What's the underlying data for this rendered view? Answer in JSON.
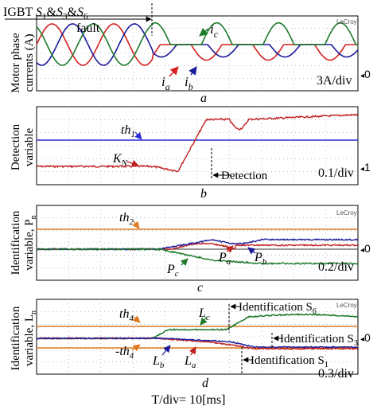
{
  "figure": {
    "time_label": "T/div= 10[ms]",
    "brand": "LeCroy"
  },
  "chart_data": [
    {
      "type": "line",
      "panel_label": "a",
      "ylabel": "Motor phase currents (A)",
      "ylabel_lines": [
        "Motor phase",
        "currents (A)"
      ],
      "scale_label": "3A/div",
      "zero_marker": "0",
      "annotations": {
        "igbt": "IGBT S1&S3&S6",
        "igbt_prefix": "IGBT ",
        "fault": "fault"
      },
      "x_divs": 10,
      "fault_at_div": 3.6,
      "series": [
        {
          "name": "ia",
          "label": "i",
          "sub": "a",
          "color": "#d42020"
        },
        {
          "name": "ib",
          "label": "i",
          "sub": "b",
          "color": "#1a1a9a"
        },
        {
          "name": "ic",
          "label": "i",
          "sub": "c",
          "color": "#1d7a2a"
        }
      ]
    },
    {
      "type": "line",
      "panel_label": "b",
      "ylabel": "Detection variable",
      "ylabel_lines": [
        "Detection",
        "variable"
      ],
      "scale_label": "0.1/div",
      "zero_marker": "1",
      "thresholds": [
        {
          "label": "th",
          "sub": "1",
          "color": "#2b2bd6"
        }
      ],
      "series": [
        {
          "name": "KN",
          "label": "K",
          "sub": "N",
          "color": "#c02020"
        }
      ],
      "annotations": {
        "detection": "Detection"
      },
      "detection_at_div": 5.05
    },
    {
      "type": "line",
      "panel_label": "c",
      "ylabel": "Identification variable, Pn",
      "ylabel_lines": [
        "Identification",
        "variable, P"
      ],
      "ylabel_sub": "n",
      "scale_label": "0.2/div",
      "zero_marker": "0",
      "thresholds": [
        {
          "label": "th",
          "sub": "2",
          "color": "#e07a20"
        }
      ],
      "series": [
        {
          "name": "Pa",
          "label": "P",
          "sub": "a",
          "color": "#c02020"
        },
        {
          "name": "Pb",
          "label": "P",
          "sub": "b",
          "color": "#1a1a9a"
        },
        {
          "name": "Pc",
          "label": "P",
          "sub": "c",
          "color": "#1d7a2a"
        }
      ]
    },
    {
      "type": "line",
      "panel_label": "d",
      "ylabel": "Identification variable, Ln",
      "ylabel_lines": [
        "Identification",
        "variable, L"
      ],
      "ylabel_sub": "n",
      "scale_label": "0.3/div",
      "zero_marker": "0",
      "thresholds": [
        {
          "label": "th",
          "sub": "4",
          "color": "#e07a20"
        },
        {
          "label": "-th",
          "sub": "4",
          "color": "#e07a20"
        }
      ],
      "series": [
        {
          "name": "La",
          "label": "L",
          "sub": "a",
          "color": "#c02020"
        },
        {
          "name": "Lb",
          "label": "L",
          "sub": "b",
          "color": "#1a1a9a"
        },
        {
          "name": "Lc",
          "label": "L",
          "sub": "c",
          "color": "#1d7a2a"
        }
      ],
      "annotations": {
        "id_s6": "Identification S6",
        "id_s6_main": "Identification S",
        "id_s6_sub": "6",
        "id_s3": "Identification S3",
        "id_s3_main": "Identification S",
        "id_s3_sub": "3",
        "id_s1": "Identification S1",
        "id_s1_main": "Identification S",
        "id_s1_sub": "1"
      }
    }
  ]
}
